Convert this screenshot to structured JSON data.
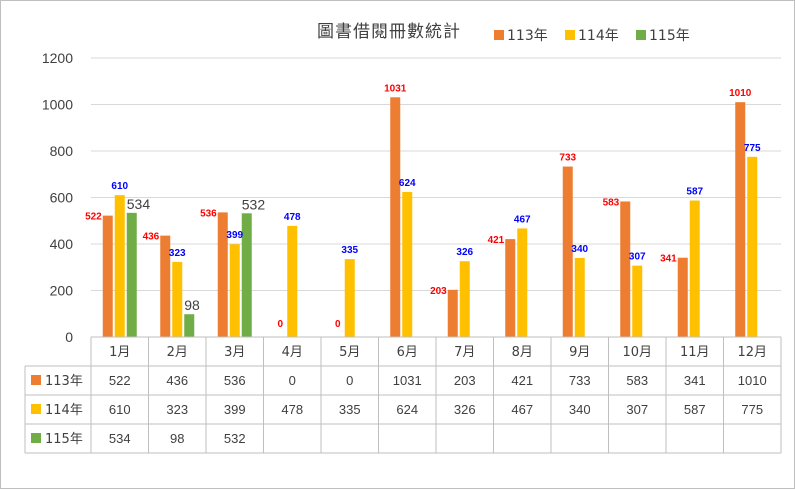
{
  "chart_data": {
    "type": "bar",
    "title": "圖書借閱冊數統計",
    "categories": [
      "1月",
      "2月",
      "3月",
      "4月",
      "5月",
      "6月",
      "7月",
      "8月",
      "9月",
      "10月",
      "11月",
      "12月"
    ],
    "series": [
      {
        "name": "113年",
        "color": "#ed7d31",
        "label_color": "#ff0000",
        "values": [
          522,
          436,
          536,
          0,
          0,
          1031,
          203,
          421,
          733,
          583,
          341,
          1010
        ]
      },
      {
        "name": "114年",
        "color": "#ffc000",
        "label_color": "#0000ff",
        "values": [
          610,
          323,
          399,
          478,
          335,
          624,
          326,
          467,
          340,
          307,
          587,
          775
        ]
      },
      {
        "name": "115年",
        "color": "#70ad47",
        "label_color": "#404040",
        "values": [
          534,
          98,
          532,
          null,
          null,
          null,
          null,
          null,
          null,
          null,
          null,
          null
        ]
      }
    ],
    "ylim": [
      0,
      1200
    ],
    "yticks": [
      0,
      200,
      400,
      600,
      800,
      1000,
      1200
    ],
    "grid": true,
    "legend": "top-right",
    "data_table": true
  }
}
